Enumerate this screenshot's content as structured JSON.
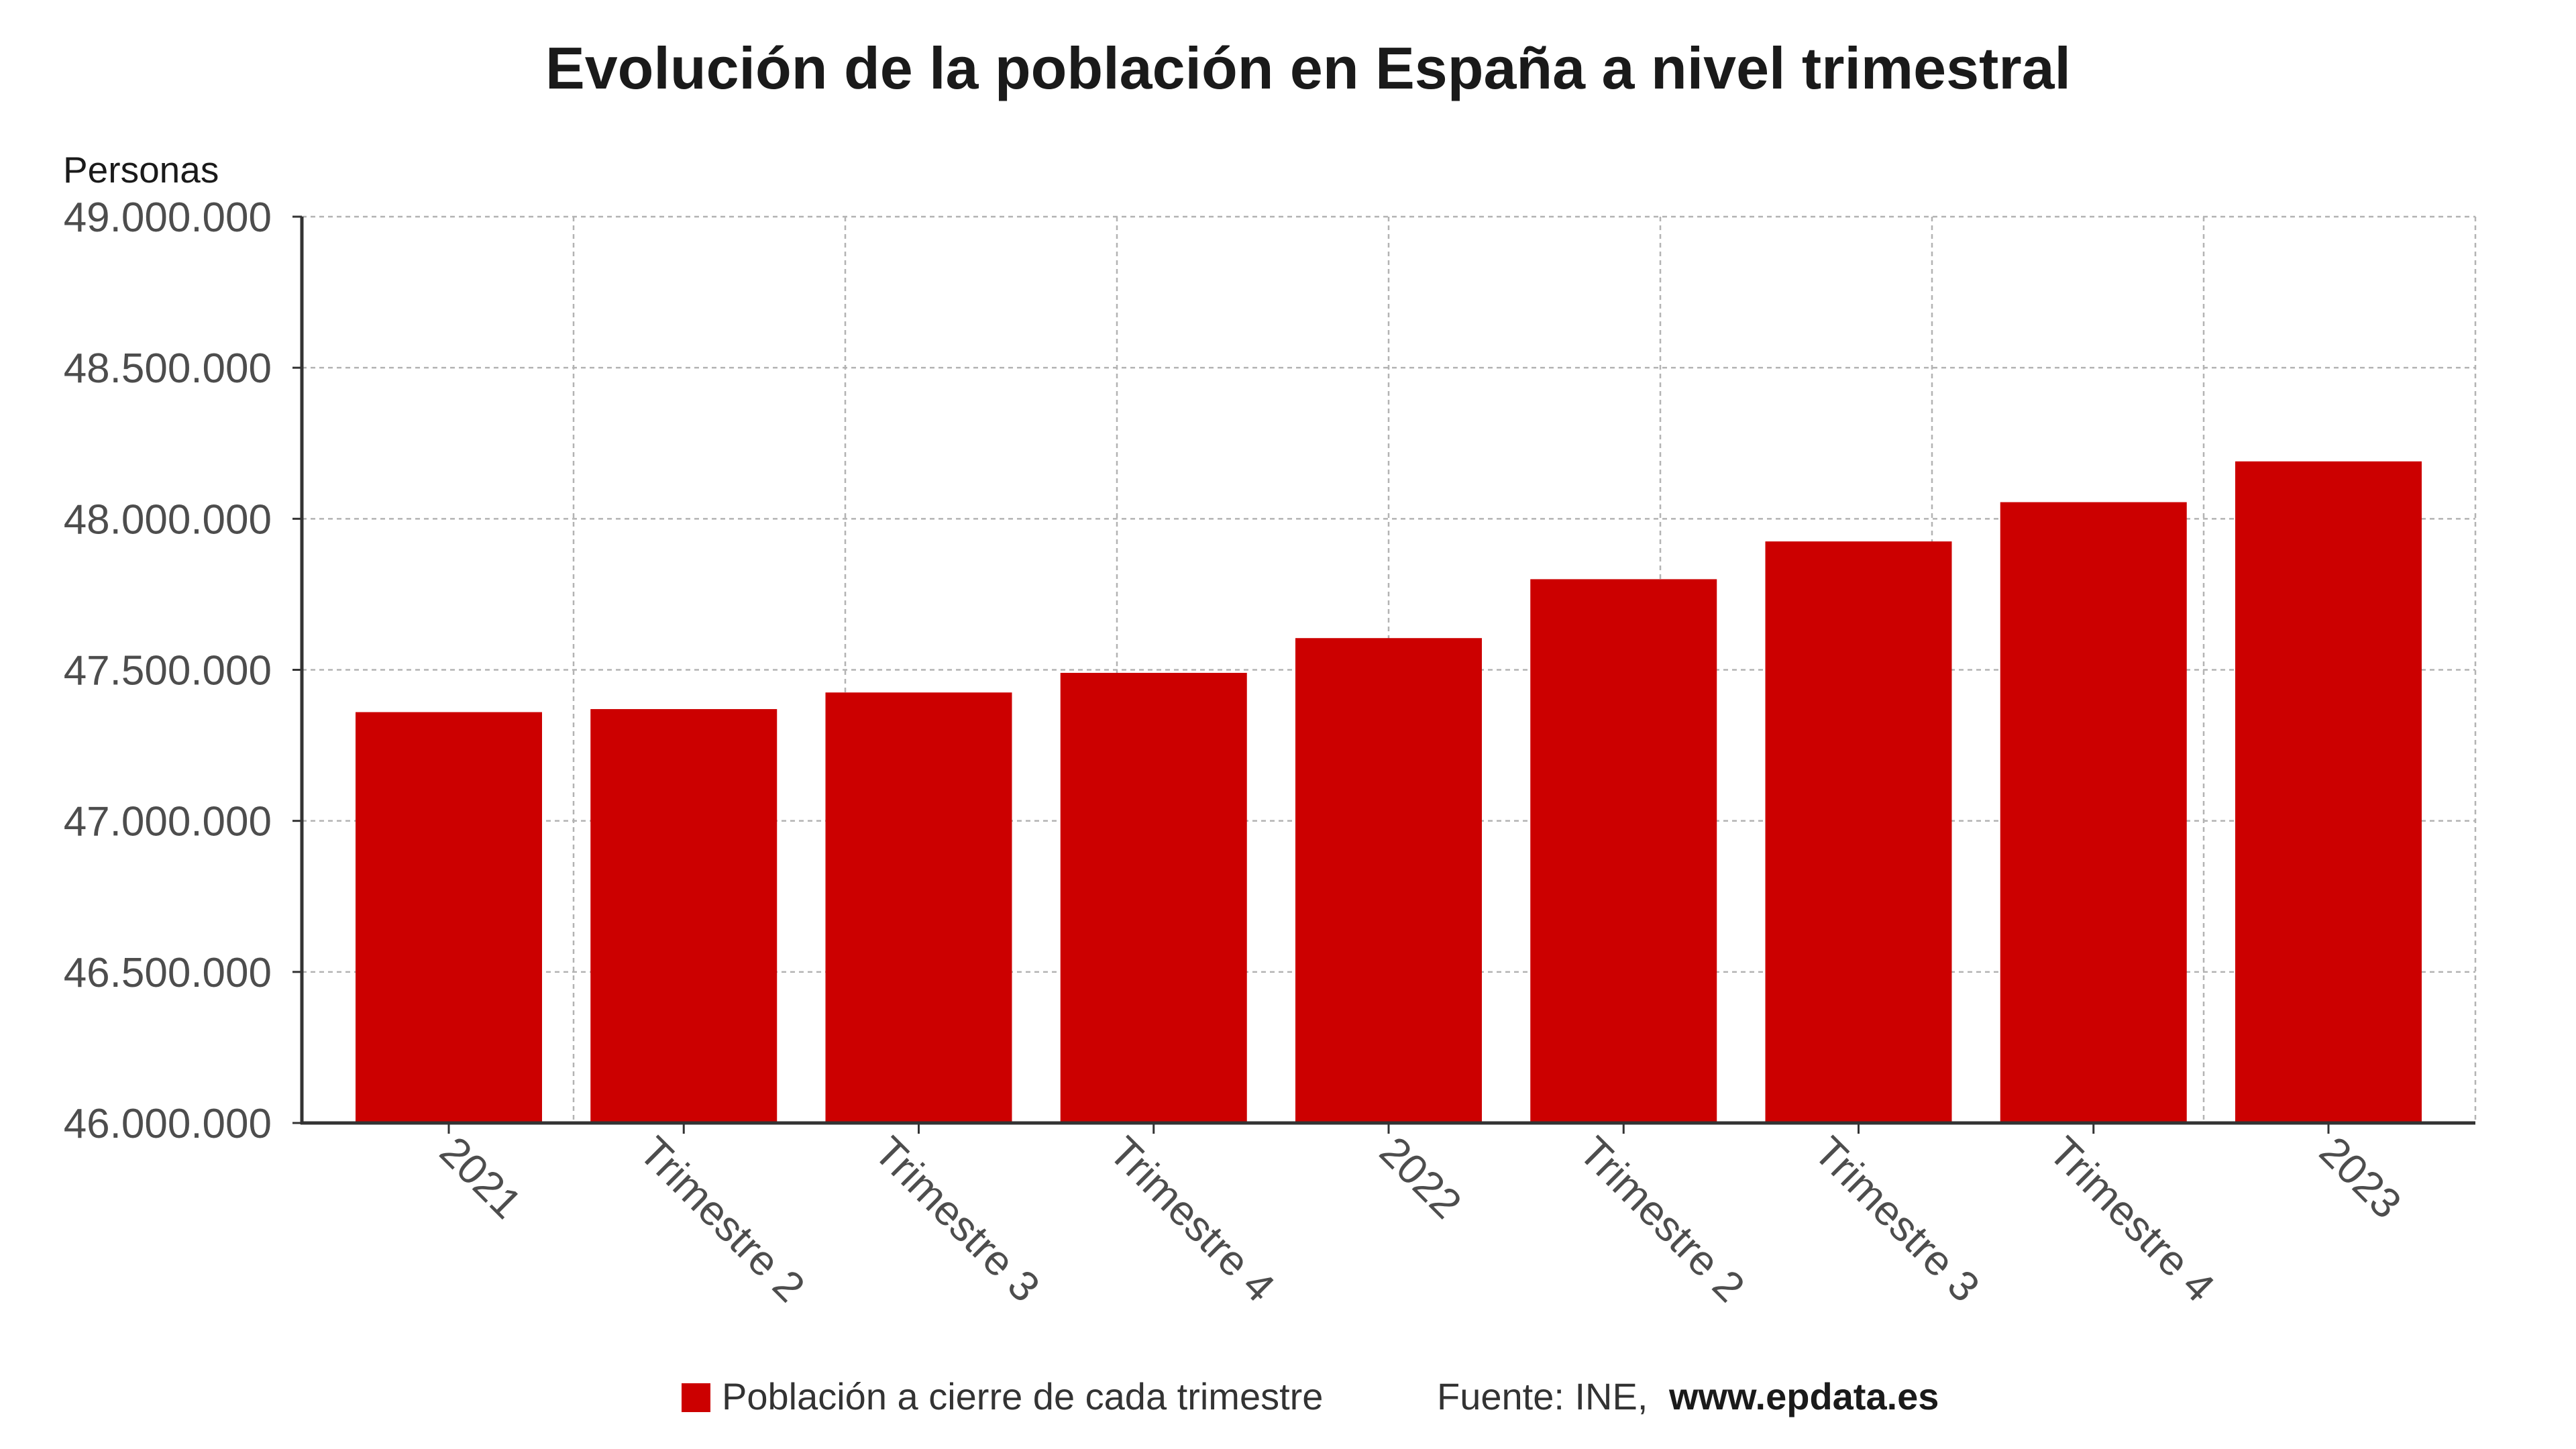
{
  "chart_data": {
    "type": "bar",
    "title": "Evolución de la población en España a nivel trimestral",
    "ylabel": "Personas",
    "categories": [
      "2021",
      "Trimestre 2",
      "Trimestre 3",
      "Trimestre 4",
      "2022",
      "Trimestre 2",
      "Trimestre 3",
      "Trimestre 4",
      "2023"
    ],
    "series": [
      {
        "name": "Población a cierre de cada trimestre",
        "values": [
          47360000,
          47370000,
          47425000,
          47490000,
          47605000,
          47800000,
          47925000,
          48055000,
          48190000
        ]
      }
    ],
    "ylim": [
      46000000,
      49000000
    ],
    "y_ticks": [
      46000000,
      46500000,
      47000000,
      47500000,
      48000000,
      48500000,
      49000000
    ],
    "y_tick_labels": [
      "46.000.000",
      "46.500.000",
      "47.000.000",
      "47.500.000",
      "48.000.000",
      "48.500.000",
      "49.000.000"
    ],
    "grid": true,
    "legend": {
      "position": "bottom-center"
    }
  },
  "source": {
    "prefix": "Fuente: INE,",
    "link": "www.epdata.es"
  },
  "colors": {
    "bar": "#cc0000",
    "title": "#1a1a1a",
    "tick_label": "#4d4d4d",
    "grid": "#b3b3b3"
  }
}
